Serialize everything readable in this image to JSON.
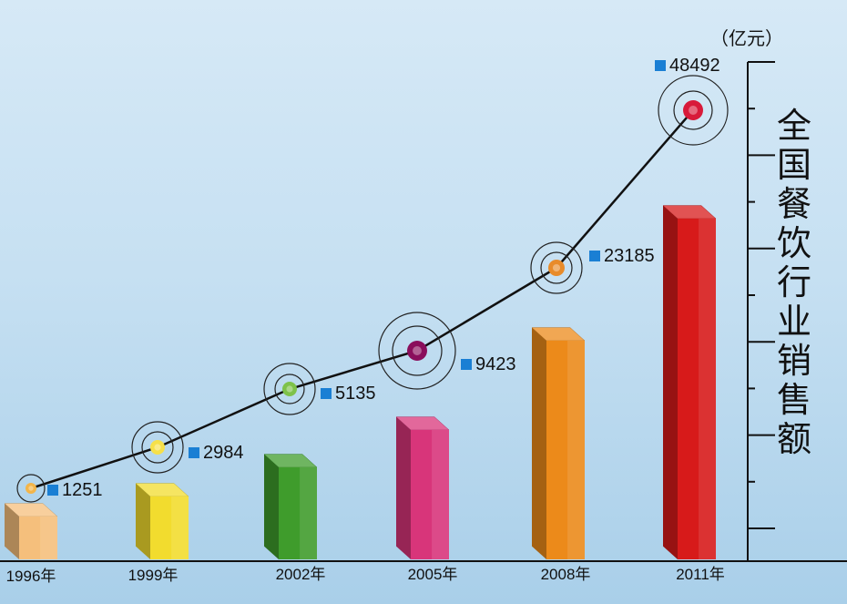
{
  "chart_data": {
    "type": "bar",
    "title": "全国餐饮行业销售额",
    "unit": "（亿元）",
    "categories": [
      "1996年",
      "1999年",
      "2002年",
      "2005年",
      "2008年",
      "2011年"
    ],
    "values": [
      1251,
      2984,
      5135,
      9423,
      23185,
      48492
    ],
    "series": [
      {
        "values": [
          1251,
          2984,
          5135,
          9423,
          23185,
          48492
        ]
      }
    ],
    "bar_colors": [
      "#f5bf7c",
      "#f2dc2e",
      "#3f9c2c",
      "#d8357a",
      "#ec8a1a",
      "#d71a1a"
    ],
    "marker_colors": [
      "#f3b54a",
      "#f6e04a",
      "#7ec24a",
      "#8a0e5c",
      "#e88b2a",
      "#d81a3a"
    ],
    "line_color": "#111111",
    "legend_marker_color": "#1a7fd4",
    "grid": false
  }
}
